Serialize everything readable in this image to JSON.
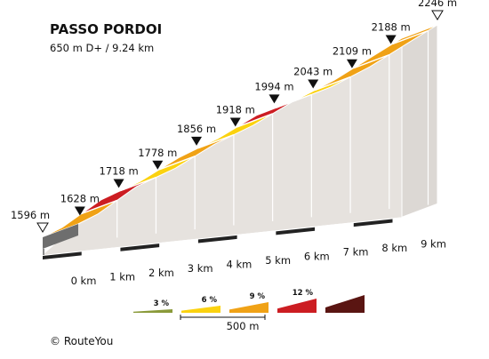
{
  "chart_data": {
    "type": "area",
    "title": "PASSO PORDOI",
    "subtitle": "650 m D+ / 9.24 km",
    "x_unit": "km",
    "elevation_unit": "m",
    "km_labels": [
      "0 km",
      "1 km",
      "2 km",
      "3 km",
      "4 km",
      "5 km",
      "6 km",
      "7 km",
      "8 km",
      "9 km"
    ],
    "points": [
      {
        "km": 0,
        "elevation": 1596,
        "label": "1596 m"
      },
      {
        "km": 0.5,
        "elevation": 1628,
        "label": "1628 m"
      },
      {
        "km": 1.5,
        "elevation": 1718,
        "label": "1718 m"
      },
      {
        "km": 2.5,
        "elevation": 1778,
        "label": "1778 m"
      },
      {
        "km": 3.5,
        "elevation": 1856,
        "label": "1856 m"
      },
      {
        "km": 4.5,
        "elevation": 1918,
        "label": "1918 m"
      },
      {
        "km": 5.5,
        "elevation": 1994,
        "label": "1994 m"
      },
      {
        "km": 6.5,
        "elevation": 2043,
        "label": "2043 m"
      },
      {
        "km": 7.5,
        "elevation": 2109,
        "label": "2109 m"
      },
      {
        "km": 8.5,
        "elevation": 2188,
        "label": "2188 m"
      },
      {
        "km": 9.24,
        "elevation": 2246,
        "label": "2246 m"
      }
    ],
    "segments": [
      {
        "from_km": 0,
        "to_km": 1,
        "color": "#f0a216"
      },
      {
        "from_km": 1,
        "to_km": 2,
        "color": "#cc1d22"
      },
      {
        "from_km": 2,
        "to_km": 3,
        "color": "#fbd20f"
      },
      {
        "from_km": 3,
        "to_km": 4,
        "color": "#f0a216"
      },
      {
        "from_km": 4,
        "to_km": 5,
        "color": "#fbd20f"
      },
      {
        "from_km": 5,
        "to_km": 6,
        "color": "#cc1d22"
      },
      {
        "from_km": 6,
        "to_km": 7,
        "color": "#fbd20f"
      },
      {
        "from_km": 7,
        "to_km": 8,
        "color": "#f0a216"
      },
      {
        "from_km": 8,
        "to_km": 9,
        "color": "#f0a216"
      },
      {
        "from_km": 9,
        "to_km": 9.24,
        "color": "#f0a216"
      }
    ],
    "legend": [
      {
        "label": "3 %",
        "color": "#8a9a3a"
      },
      {
        "label": "6 %",
        "color": "#fbd20f"
      },
      {
        "label": "9 %",
        "color": "#f0a216"
      },
      {
        "label": "12 %",
        "color": "#cc1d22"
      },
      {
        "label": "",
        "color": "#5a1512"
      }
    ],
    "scale_label": "500 m"
  },
  "credit": "© RouteYou"
}
